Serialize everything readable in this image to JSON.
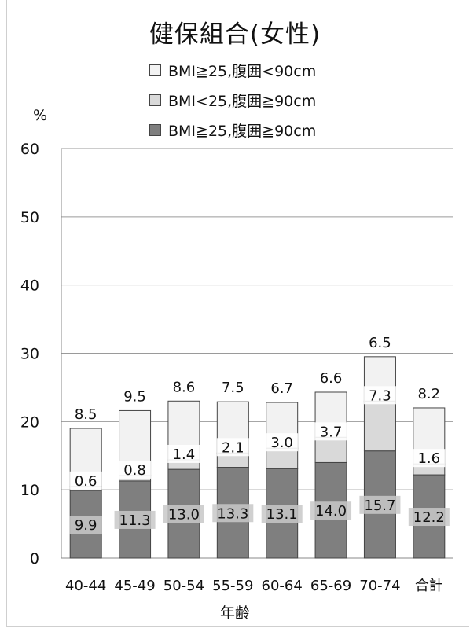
{
  "chart_data": {
    "type": "bar",
    "stacked": true,
    "title": "健保組合(女性)",
    "ylabel": "%",
    "xlabel": "年齢",
    "ylim": [
      0,
      60
    ],
    "yticks": [
      0,
      10,
      20,
      30,
      40,
      50,
      60
    ],
    "grid": true,
    "legend_position": "top",
    "categories": [
      "40-44",
      "45-49",
      "50-54",
      "55-59",
      "60-64",
      "65-69",
      "70-74",
      "合計"
    ],
    "series": [
      {
        "name": "BMI≧25,腹囲≧90cm",
        "color": "#7f7f7f",
        "values": [
          9.9,
          11.3,
          13.0,
          13.3,
          13.1,
          14.0,
          15.7,
          12.2
        ]
      },
      {
        "name": "BMI<25,腹囲≧90cm",
        "color": "#d9d9d9",
        "values": [
          0.6,
          0.8,
          1.4,
          2.1,
          3.0,
          3.7,
          7.3,
          1.6
        ]
      },
      {
        "name": "BMI≧25,腹囲<90cm",
        "color": "#f2f2f2",
        "values": [
          8.5,
          9.5,
          8.6,
          7.5,
          6.7,
          6.6,
          6.5,
          8.2
        ]
      }
    ]
  }
}
